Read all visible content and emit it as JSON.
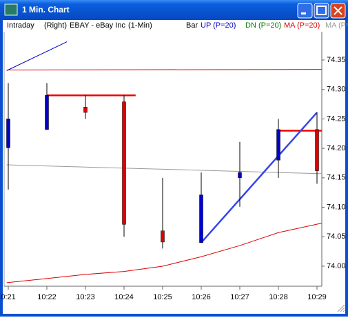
{
  "window": {
    "title": "1 Min. Chart"
  },
  "chart_data": {
    "type": "candlestick",
    "header": [
      "Intraday",
      "(Right)",
      "EBAY - eBay Inc",
      "(1-Min)",
      "Bar"
    ],
    "legend": [
      {
        "name": "UP (P=20)",
        "color": "#0000cc"
      },
      {
        "name": "DN (P=20)",
        "color": "#008000"
      },
      {
        "name": "MA (P=20)",
        "color": "#dd0000"
      },
      {
        "name": "MA (P=",
        "color": "#999999"
      }
    ],
    "categories": [
      "0:21",
      "10:22",
      "10:23",
      "10:24",
      "10:25",
      "10:26",
      "10:27",
      "10:28",
      "10:29"
    ],
    "open": [
      74.201,
      74.232,
      74.27,
      74.279,
      74.06,
      74.04,
      74.15,
      74.18,
      74.232
    ],
    "high": [
      74.311,
      74.311,
      74.29,
      74.29,
      74.15,
      74.159,
      74.211,
      74.25,
      74.261
    ],
    "low": [
      74.13,
      74.232,
      74.25,
      74.05,
      74.03,
      74.04,
      74.101,
      74.15,
      74.14
    ],
    "close": [
      74.25,
      74.29,
      74.261,
      74.071,
      74.041,
      74.121,
      74.159,
      74.232,
      74.162
    ],
    "up_color": "#0000cc",
    "down_color": "#dd0000",
    "overlays": [
      {
        "color": "#0000cc",
        "width": 1,
        "x": [
          -0.04,
          1.52
        ],
        "values": [
          74.332,
          74.381
        ]
      },
      {
        "color": "#dd0000",
        "width": 1,
        "x": [
          -0.04,
          8.12
        ],
        "values": [
          74.333,
          74.334
        ]
      },
      {
        "color": "#dd0000",
        "width": 1,
        "x": [
          -0.04,
          1,
          2,
          3,
          4,
          5,
          6,
          7,
          8.12
        ],
        "values": [
          73.972,
          73.979,
          73.986,
          73.991,
          74.0,
          74.016,
          74.035,
          74.057,
          74.073
        ]
      },
      {
        "color": "#999999",
        "width": 1,
        "x": [
          -0.04,
          8.12
        ],
        "values": [
          74.172,
          74.157
        ]
      },
      {
        "color": "#ee0000",
        "width": 2.5,
        "x": [
          1,
          3.3
        ],
        "values": [
          74.29,
          74.29
        ]
      },
      {
        "color": "#ee0000",
        "width": 2.5,
        "x": [
          7,
          8.12
        ],
        "values": [
          74.23,
          74.23
        ]
      },
      {
        "color": "#3344ee",
        "width": 2.5,
        "x": [
          5,
          8
        ],
        "values": [
          74.04,
          74.261
        ]
      }
    ],
    "ylim": [
      73.966,
      74.398
    ],
    "yticks": [
      {
        "value": 74.0,
        "label": "74.00"
      },
      74.05,
      {
        "value": 74.1,
        "label": "74.10"
      },
      74.15,
      {
        "value": 74.2,
        "label": "74.20"
      },
      74.25,
      {
        "value": 74.3,
        "label": "74.30"
      },
      74.35
    ]
  }
}
